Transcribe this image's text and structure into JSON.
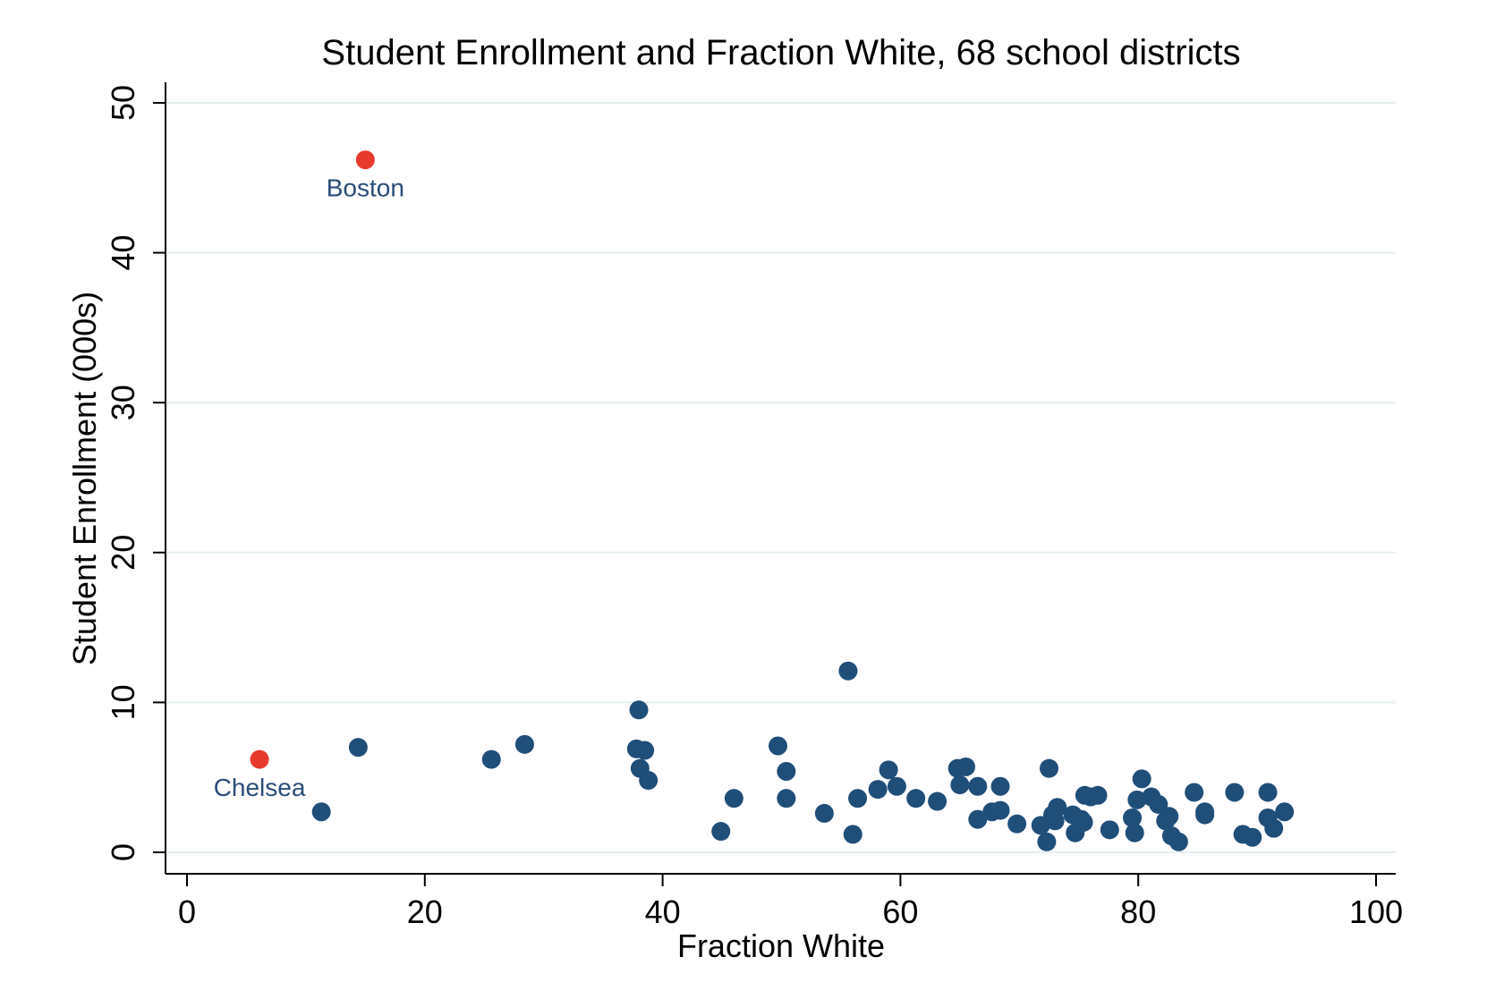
{
  "chart_data": {
    "type": "scatter",
    "title": "Student Enrollment and Fraction White, 68 school districts",
    "xlabel": "Fraction White",
    "ylabel": "Student Enrollment (000s)",
    "xlim": [
      0,
      100
    ],
    "ylim": [
      0,
      50
    ],
    "xticks": [
      "0",
      "20",
      "40",
      "60",
      "80",
      "100"
    ],
    "yticks": [
      "0",
      "10",
      "20",
      "30",
      "40",
      "50"
    ],
    "grid": "horizontal",
    "colors": {
      "point": "#1f4e79",
      "highlight": "#e8392d",
      "label": "#2a4d7a",
      "grid": "#e6efef",
      "axis": "#000000"
    },
    "highlighted": [
      {
        "label": "Boston",
        "x": 15.0,
        "y": 46.2
      },
      {
        "label": "Chelsea",
        "x": 6.1,
        "y": 6.2
      }
    ],
    "series": [
      {
        "name": "Districts",
        "points": [
          [
            11.3,
            2.7
          ],
          [
            14.4,
            7.0
          ],
          [
            25.6,
            6.2
          ],
          [
            28.4,
            7.2
          ],
          [
            38.0,
            9.5
          ],
          [
            37.8,
            6.9
          ],
          [
            38.5,
            6.8
          ],
          [
            38.1,
            5.6
          ],
          [
            38.8,
            4.8
          ],
          [
            44.9,
            1.4
          ],
          [
            46.0,
            3.6
          ],
          [
            49.7,
            7.1
          ],
          [
            50.4,
            5.4
          ],
          [
            50.4,
            3.6
          ],
          [
            53.6,
            2.6
          ],
          [
            55.6,
            12.1
          ],
          [
            56.0,
            1.2
          ],
          [
            56.4,
            3.6
          ],
          [
            58.1,
            4.2
          ],
          [
            59.0,
            5.5
          ],
          [
            59.7,
            4.4
          ],
          [
            61.3,
            3.6
          ],
          [
            63.1,
            3.4
          ],
          [
            64.8,
            5.6
          ],
          [
            65.5,
            5.7
          ],
          [
            65.0,
            4.5
          ],
          [
            66.5,
            4.4
          ],
          [
            66.5,
            2.2
          ],
          [
            67.7,
            2.7
          ],
          [
            68.4,
            4.4
          ],
          [
            68.4,
            2.8
          ],
          [
            71.8,
            1.8
          ],
          [
            72.3,
            0.7
          ],
          [
            72.5,
            5.6
          ],
          [
            72.8,
            2.5
          ],
          [
            73.2,
            3.0
          ],
          [
            73.0,
            2.1
          ],
          [
            74.5,
            2.5
          ],
          [
            74.7,
            1.3
          ],
          [
            75.2,
            2.2
          ],
          [
            75.4,
            2.0
          ],
          [
            75.5,
            3.8
          ],
          [
            76.0,
            3.7
          ],
          [
            76.6,
            3.8
          ],
          [
            79.5,
            2.3
          ],
          [
            79.7,
            1.3
          ],
          [
            79.9,
            3.5
          ],
          [
            80.3,
            4.9
          ],
          [
            81.1,
            3.7
          ],
          [
            81.7,
            3.2
          ],
          [
            82.3,
            2.1
          ],
          [
            82.6,
            2.4
          ],
          [
            82.8,
            1.1
          ],
          [
            84.7,
            4.0
          ],
          [
            85.6,
            2.7
          ],
          [
            85.6,
            2.5
          ],
          [
            88.1,
            4.0
          ],
          [
            88.8,
            1.2
          ],
          [
            89.6,
            1.0
          ],
          [
            90.9,
            4.0
          ],
          [
            90.9,
            2.3
          ],
          [
            91.4,
            1.6
          ],
          [
            92.3,
            2.7
          ],
          [
            83.4,
            0.7
          ],
          [
            77.6,
            1.5
          ],
          [
            69.8,
            1.9
          ]
        ]
      }
    ]
  }
}
